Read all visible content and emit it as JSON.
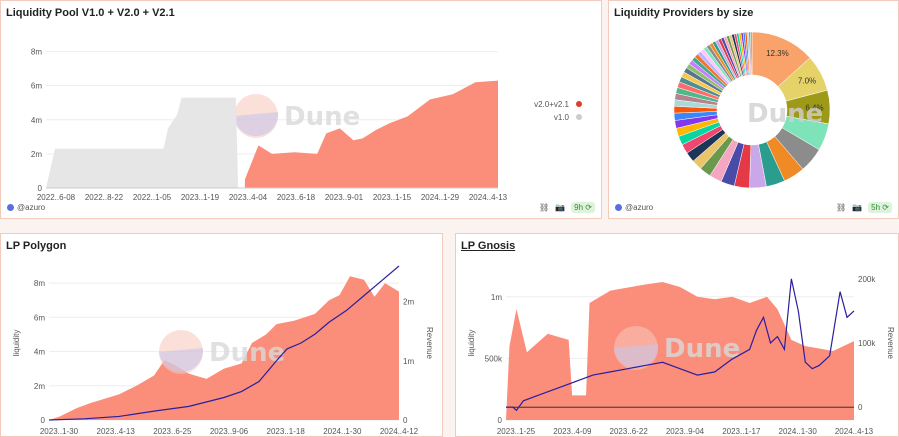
{
  "charts": [
    {
      "id": "lp_all",
      "title": "Liquidity Pool V1.0 + V2.0 + V2.1",
      "footer_user": "@azuro",
      "refresh": "9h",
      "watermark": "Dune",
      "colors": {
        "v2": "#fa8e7a",
        "v1": "#e6e6e6",
        "v2_legend": "#e03c2b",
        "v1_legend": "#cccccc"
      },
      "chart_data": {
        "type": "area",
        "x_labels": [
          "2022..6-08",
          "2022..8-22",
          "2022..1-05",
          "2023..1-19",
          "2023..4-04",
          "2023..6-18",
          "2023..9-01",
          "2023..1-15",
          "2024..1-29",
          "2024..4-13"
        ],
        "y_ticks": [
          "0",
          "2m",
          "4m",
          "6m",
          "8m"
        ],
        "ylim": [
          0,
          9500000
        ],
        "legend": [
          "v2.0+v2.1",
          "v1.0"
        ],
        "series_v1": [
          [
            0,
            0
          ],
          [
            0.02,
            2300000
          ],
          [
            0.18,
            2300000
          ],
          [
            0.19,
            2300000
          ],
          [
            0.26,
            2300000
          ],
          [
            0.27,
            3500000
          ],
          [
            0.29,
            4300000
          ],
          [
            0.3,
            5300000
          ],
          [
            0.42,
            5300000
          ],
          [
            0.425,
            0
          ]
        ],
        "series_v2": [
          [
            0.44,
            500000
          ],
          [
            0.47,
            2500000
          ],
          [
            0.5,
            2000000
          ],
          [
            0.55,
            2100000
          ],
          [
            0.6,
            2000000
          ],
          [
            0.62,
            3200000
          ],
          [
            0.65,
            3500000
          ],
          [
            0.68,
            2800000
          ],
          [
            0.7,
            2900000
          ],
          [
            0.73,
            3400000
          ],
          [
            0.76,
            3800000
          ],
          [
            0.8,
            4200000
          ],
          [
            0.85,
            5200000
          ],
          [
            0.9,
            5500000
          ],
          [
            0.95,
            6200000
          ],
          [
            1.0,
            6300000
          ]
        ]
      }
    },
    {
      "id": "lp_providers",
      "title": "Liquidity Providers by size",
      "footer_user": "@azuro",
      "refresh": "5h",
      "watermark": "Dune",
      "chart_data": {
        "type": "pie",
        "donut": true,
        "labeled_slices": [
          {
            "value": 12.3,
            "label": "12.3%",
            "color": "#f9a36a"
          },
          {
            "value": 7.0,
            "label": "7.0%",
            "color": "#e5d36a"
          },
          {
            "value": 6.4,
            "label": "6.4%",
            "color": "#9e9a18"
          }
        ],
        "other_slices": [
          5.2,
          4.8,
          4.1,
          3.6,
          3.2,
          2.9,
          2.6,
          2.4,
          2.2,
          2.0,
          1.9,
          1.8,
          1.7,
          1.6,
          1.5,
          1.4,
          1.3,
          1.25,
          1.2,
          1.15,
          1.1,
          1.05,
          1.0,
          0.95,
          0.9,
          0.85,
          0.8,
          0.78,
          0.75,
          0.72,
          0.7,
          0.68,
          0.65,
          0.62,
          0.6,
          0.58,
          0.56,
          0.54,
          0.52,
          0.5,
          0.48,
          0.46,
          0.44,
          0.42,
          0.4,
          0.38,
          0.36,
          0.34,
          0.32,
          0.3
        ],
        "palette": [
          "#7ee3b8",
          "#8c8c8c",
          "#f08a24",
          "#2a9d8f",
          "#c9a7e8",
          "#e63946",
          "#4a4aa8",
          "#f4a6c2",
          "#6a994e",
          "#e9c46a",
          "#1d3557",
          "#ef476f",
          "#06d6a0",
          "#ffb703",
          "#8338ec",
          "#3a86ff",
          "#fb5607",
          "#a8dadc",
          "#b5838d",
          "#52b788",
          "#ff6b6b",
          "#4d908e",
          "#f9c74f",
          "#577590",
          "#90be6d",
          "#c77dff",
          "#43aa8b",
          "#f3722c",
          "#bdb2ff",
          "#ffc6ff"
        ]
      }
    },
    {
      "id": "lp_polygon",
      "title": "LP Polygon",
      "watermark": "Dune",
      "colors": {
        "liquidity": "#fa8e7a",
        "revenue": "#2b1f9e"
      },
      "chart_data": {
        "type": "area",
        "x_labels": [
          "2023..1-30",
          "2023..4-13",
          "2023..6-25",
          "2023..9-06",
          "2023..1-18",
          "2024..1-30",
          "2024..4-12"
        ],
        "y_ticks": [
          "0",
          "2m",
          "4m",
          "6m",
          "8m"
        ],
        "y2_ticks": [
          "0",
          "1m",
          "2m"
        ],
        "ylim": [
          0,
          9000000
        ],
        "y2lim": [
          0,
          2600000
        ],
        "ylabel": "liquidity",
        "y2label": "Revenue",
        "liquidity": [
          [
            0,
            0
          ],
          [
            0.03,
            200000
          ],
          [
            0.08,
            700000
          ],
          [
            0.12,
            1000000
          ],
          [
            0.2,
            1500000
          ],
          [
            0.25,
            2000000
          ],
          [
            0.3,
            2600000
          ],
          [
            0.33,
            3500000
          ],
          [
            0.36,
            3200000
          ],
          [
            0.4,
            2700000
          ],
          [
            0.45,
            2400000
          ],
          [
            0.5,
            3000000
          ],
          [
            0.55,
            3300000
          ],
          [
            0.58,
            4500000
          ],
          [
            0.62,
            5000000
          ],
          [
            0.65,
            5600000
          ],
          [
            0.7,
            5800000
          ],
          [
            0.73,
            6000000
          ],
          [
            0.76,
            6200000
          ],
          [
            0.8,
            7000000
          ],
          [
            0.83,
            7300000
          ],
          [
            0.86,
            8400000
          ],
          [
            0.9,
            8200000
          ],
          [
            0.93,
            7200000
          ],
          [
            0.96,
            8000000
          ],
          [
            1.0,
            7500000
          ]
        ],
        "revenue": [
          [
            0,
            0
          ],
          [
            0.1,
            20000
          ],
          [
            0.2,
            60000
          ],
          [
            0.3,
            150000
          ],
          [
            0.4,
            230000
          ],
          [
            0.5,
            380000
          ],
          [
            0.55,
            480000
          ],
          [
            0.6,
            650000
          ],
          [
            0.65,
            1000000
          ],
          [
            0.68,
            1200000
          ],
          [
            0.72,
            1300000
          ],
          [
            0.76,
            1450000
          ],
          [
            0.8,
            1650000
          ],
          [
            0.85,
            1850000
          ],
          [
            0.9,
            2100000
          ],
          [
            0.95,
            2350000
          ],
          [
            1.0,
            2600000
          ]
        ]
      }
    },
    {
      "id": "lp_gnosis",
      "title": "LP Gnosis",
      "watermark": "Dune",
      "colors": {
        "liquidity": "#fa8e7a",
        "revenue": "#2b1f9e"
      },
      "chart_data": {
        "type": "area",
        "x_labels": [
          "2023..1-25",
          "2023..4-09",
          "2023..6-22",
          "2023..9-04",
          "2023..1-17",
          "2024..1-30",
          "2024..4-13"
        ],
        "y_ticks": [
          "0",
          "500k",
          "1m"
        ],
        "y2_ticks": [
          "0",
          "100k",
          "200k"
        ],
        "ylim": [
          0,
          1250000
        ],
        "y2lim": [
          -20000,
          220000
        ],
        "ylabel": "liquidity",
        "y2label": "Revenue",
        "liquidity": [
          [
            0,
            0
          ],
          [
            0.01,
            600000
          ],
          [
            0.03,
            900000
          ],
          [
            0.06,
            550000
          ],
          [
            0.12,
            700000
          ],
          [
            0.18,
            650000
          ],
          [
            0.19,
            200000
          ],
          [
            0.23,
            200000
          ],
          [
            0.24,
            950000
          ],
          [
            0.3,
            1050000
          ],
          [
            0.4,
            1100000
          ],
          [
            0.45,
            1120000
          ],
          [
            0.5,
            1080000
          ],
          [
            0.55,
            1000000
          ],
          [
            0.6,
            980000
          ],
          [
            0.65,
            1000000
          ],
          [
            0.7,
            950000
          ],
          [
            0.75,
            1000000
          ],
          [
            0.78,
            900000
          ],
          [
            0.82,
            650000
          ],
          [
            0.86,
            600000
          ],
          [
            0.9,
            580000
          ],
          [
            0.94,
            560000
          ],
          [
            1.0,
            640000
          ]
        ],
        "revenue": [
          [
            0,
            0
          ],
          [
            0.02,
            0
          ],
          [
            0.03,
            -5000
          ],
          [
            0.05,
            10000
          ],
          [
            0.1,
            20000
          ],
          [
            0.15,
            30000
          ],
          [
            0.2,
            40000
          ],
          [
            0.25,
            50000
          ],
          [
            0.3,
            55000
          ],
          [
            0.35,
            60000
          ],
          [
            0.4,
            65000
          ],
          [
            0.45,
            70000
          ],
          [
            0.5,
            60000
          ],
          [
            0.55,
            50000
          ],
          [
            0.6,
            55000
          ],
          [
            0.65,
            75000
          ],
          [
            0.7,
            90000
          ],
          [
            0.72,
            120000
          ],
          [
            0.74,
            140000
          ],
          [
            0.76,
            100000
          ],
          [
            0.78,
            110000
          ],
          [
            0.8,
            90000
          ],
          [
            0.82,
            200000
          ],
          [
            0.84,
            150000
          ],
          [
            0.86,
            70000
          ],
          [
            0.88,
            60000
          ],
          [
            0.9,
            65000
          ],
          [
            0.93,
            80000
          ],
          [
            0.96,
            180000
          ],
          [
            0.98,
            140000
          ],
          [
            1.0,
            150000
          ]
        ]
      }
    }
  ]
}
